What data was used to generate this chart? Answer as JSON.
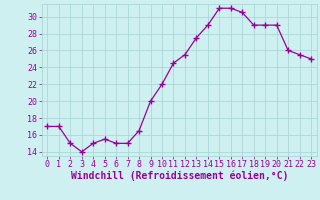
{
  "x": [
    0,
    1,
    2,
    3,
    4,
    5,
    6,
    7,
    8,
    9,
    10,
    11,
    12,
    13,
    14,
    15,
    16,
    17,
    18,
    19,
    20,
    21,
    22,
    23
  ],
  "y": [
    17,
    17,
    15,
    14,
    15,
    15.5,
    15,
    15,
    16.5,
    20,
    22,
    24.5,
    25.5,
    27.5,
    29,
    31,
    31,
    30.5,
    29,
    29,
    29,
    26,
    25.5,
    25
  ],
  "line_color": "#990099",
  "marker": "+",
  "marker_size": 4,
  "bg_color": "#cff0f0",
  "grid_color": "#aad8d8",
  "xlabel": "Windchill (Refroidissement éolien,°C)",
  "xlim": [
    -0.5,
    23.5
  ],
  "ylim": [
    13.5,
    31.5
  ],
  "yticks": [
    14,
    16,
    18,
    20,
    22,
    24,
    26,
    28,
    30
  ],
  "xticks": [
    0,
    1,
    2,
    3,
    4,
    5,
    6,
    7,
    8,
    9,
    10,
    11,
    12,
    13,
    14,
    15,
    16,
    17,
    18,
    19,
    20,
    21,
    22,
    23
  ],
  "tick_fontsize": 6,
  "xlabel_fontsize": 7,
  "line_width": 0.9
}
